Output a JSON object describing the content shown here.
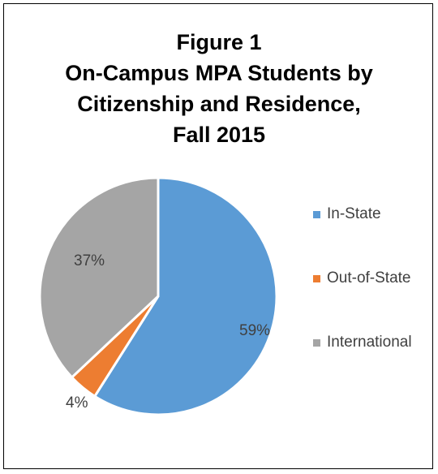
{
  "chart_data": {
    "type": "pie",
    "title": [
      "Figure 1",
      "On-Campus MPA Students by",
      "Citizenship and Residence,",
      "Fall 2015"
    ],
    "categories": [
      "In-State",
      "Out-of-State",
      "International"
    ],
    "values": [
      59,
      4,
      37
    ],
    "data_labels": [
      "59%",
      "4%",
      "37%"
    ],
    "colors": [
      "#5B9BD5",
      "#ED7D31",
      "#A5A5A5"
    ],
    "legend_position": "right",
    "start_angle": "12 o'clock, clockwise"
  }
}
